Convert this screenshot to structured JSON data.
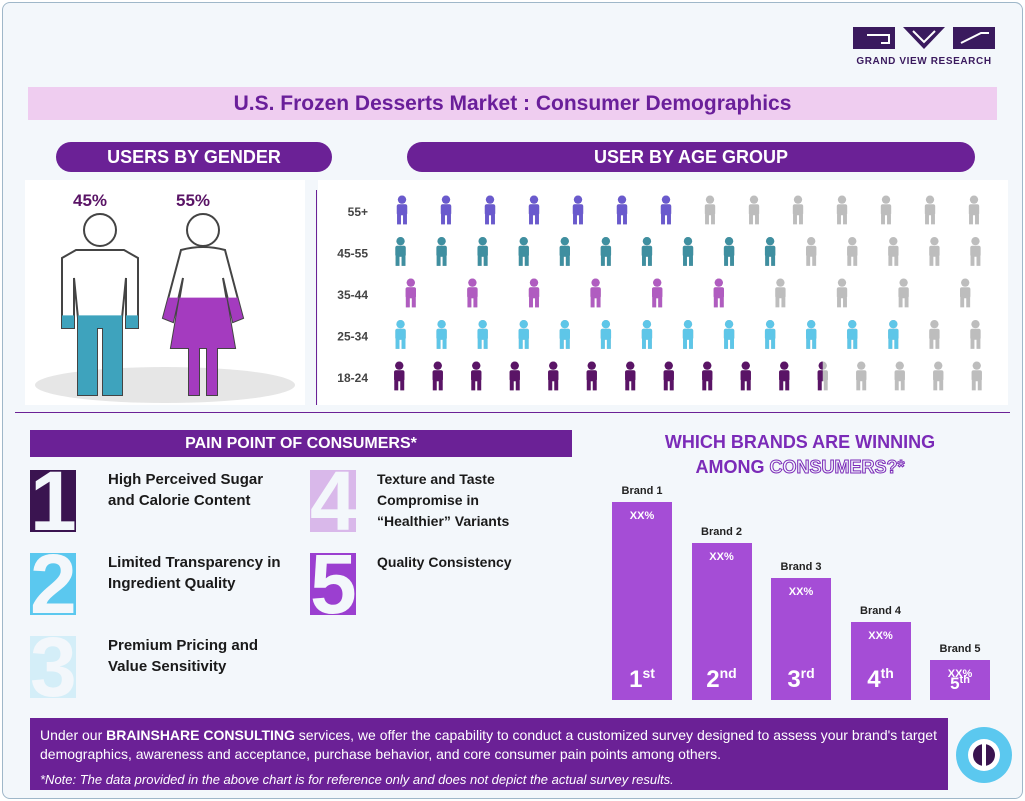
{
  "logo": {
    "text": "GRAND VIEW RESEARCH"
  },
  "title": "U.S. Frozen Desserts Market : Consumer Demographics",
  "gender": {
    "header": "USERS BY GENDER",
    "male": {
      "value": 45,
      "label": "45%",
      "color": "#3ea3bd"
    },
    "female": {
      "value": 55,
      "label": "55%",
      "color": "#a43bbf"
    }
  },
  "age": {
    "header": "USER BY AGE GROUP",
    "rows": [
      {
        "label": "55+",
        "filled": 7,
        "total": 14,
        "color": "#6a5acd"
      },
      {
        "label": "45-55",
        "filled": 10,
        "total": 15,
        "color": "#3f8fa0"
      },
      {
        "label": "35-44",
        "filled": 6,
        "total": 10,
        "color": "#b05cc0"
      },
      {
        "label": "25-34",
        "filled": 13,
        "total": 15,
        "color": "#5ec6e8"
      },
      {
        "label": "18-24",
        "filled": 11.5,
        "total": 16,
        "color": "#5a1466"
      }
    ]
  },
  "pain_points": {
    "header": "PAIN POINT OF CONSUMERS*",
    "items": [
      {
        "number": "1",
        "text": "High Perceived Sugar and Calorie Content",
        "color": "#3a1450"
      },
      {
        "number": "2",
        "text": "Limited Transparency in Ingredient Quality",
        "color": "#5bc8ef"
      },
      {
        "number": "3",
        "text": "Premium Pricing and Value Sensitivity",
        "color": "#d4eef8"
      },
      {
        "number": "4",
        "text": "Texture and Taste Compromise in “Healthier” Variants",
        "color": "#d9b8ea"
      },
      {
        "number": "5",
        "text": "Quality Consistency",
        "color": "#9b3fd0"
      }
    ]
  },
  "brands": {
    "title_line1": "WHICH BRANDS ARE WINNING",
    "title_line2a": "AMONG",
    "title_line2b": "CONSUMERS?*",
    "items": [
      {
        "name": "Brand 1",
        "share": "XX%",
        "rank": "1",
        "suffix": "st"
      },
      {
        "name": "Brand 2",
        "share": "XX%",
        "rank": "2",
        "suffix": "nd"
      },
      {
        "name": "Brand 3",
        "share": "XX%",
        "rank": "3",
        "suffix": "rd"
      },
      {
        "name": "Brand 4",
        "share": "XX%",
        "rank": "4",
        "suffix": "th"
      },
      {
        "name": "Brand 5",
        "share": "XX%",
        "rank": "5",
        "suffix": "th"
      }
    ]
  },
  "footer": {
    "text_before": "Under our ",
    "text_bold": "BRAINSHARE CONSULTING",
    "text_after": " services, we offer the capability to conduct a customized survey designed to assess your brand's target demographics, awareness and acceptance, purchase behavior, and core consumer pain points among others.",
    "note": "*Note: The data provided in the above chart is for reference only and does not depict the actual survey results."
  }
}
